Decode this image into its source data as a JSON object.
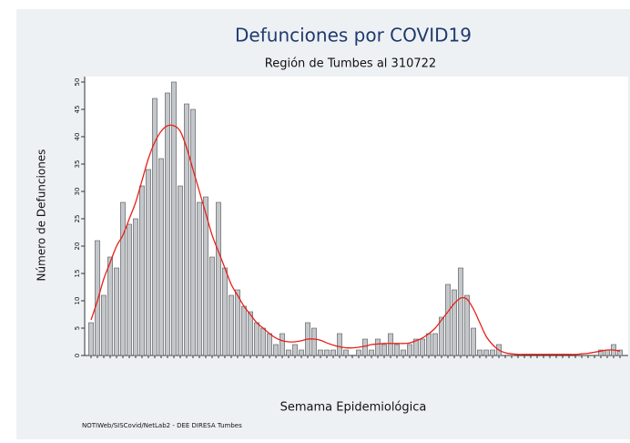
{
  "chart_data": {
    "type": "bar",
    "title": "Defunciones por COVID19",
    "subtitle": "Región de Tumbes al 310722",
    "y_label": "Número de Defunciones",
    "x_label": "Semama Epidemiológica",
    "source": "NOTIWeb/SISCovid/NetLab2 - DEE DIRESA Tumbes",
    "values": [
      6,
      21,
      11,
      18,
      16,
      28,
      24,
      25,
      31,
      34,
      47,
      36,
      48,
      50,
      31,
      46,
      45,
      28,
      29,
      18,
      28,
      16,
      11,
      12,
      9,
      8,
      6,
      5,
      4,
      2,
      4,
      1,
      2,
      1,
      6,
      5,
      1,
      1,
      1,
      4,
      1,
      0,
      1,
      3,
      1,
      3,
      2,
      4,
      2,
      1,
      2,
      3,
      3,
      4,
      4,
      7,
      13,
      12,
      16,
      11,
      5,
      1,
      1,
      1,
      2,
      0,
      0,
      0,
      0,
      0,
      0,
      0,
      0,
      0,
      0,
      0,
      0,
      0,
      0,
      0,
      1,
      1,
      2,
      1
    ],
    "color": "#c3c7cb",
    "trend": [
      6.5,
      10,
      14,
      17,
      20,
      22,
      25,
      28,
      32,
      36,
      39,
      41,
      42,
      42,
      41,
      38,
      34,
      30,
      26,
      22,
      19,
      16,
      13,
      11,
      9,
      7.5,
      6,
      5,
      4,
      3.2,
      2.7,
      2.5,
      2.5,
      2.7,
      3,
      3,
      2.8,
      2.3,
      1.9,
      1.6,
      1.4,
      1.4,
      1.5,
      1.7,
      2,
      2.1,
      2.2,
      2.2,
      2.2,
      2.2,
      2.3,
      2.7,
      3.2,
      4,
      5,
      6.5,
      8,
      9.5,
      10.5,
      10.3,
      8.5,
      6,
      3.5,
      2,
      1,
      0.5,
      0.3,
      0.2,
      0.2,
      0.2,
      0.2,
      0.2,
      0.2,
      0.2,
      0.2,
      0.2,
      0.2,
      0.3,
      0.4,
      0.6,
      0.8,
      1,
      1,
      0.8
    ],
    "trend_color": "#e8201a",
    "ylim": [
      0,
      51
    ],
    "yticks": [
      0,
      5,
      10,
      15,
      20,
      25,
      30,
      35,
      40,
      45,
      50
    ]
  }
}
